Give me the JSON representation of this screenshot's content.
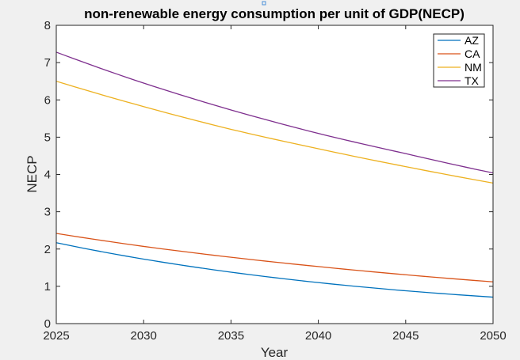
{
  "chart_data": {
    "type": "line",
    "title": "non-renewable energy consumption per unit of GDP(NECP)",
    "xlabel": "Year",
    "ylabel": "NECP",
    "xlim": [
      2025,
      2050
    ],
    "ylim": [
      0,
      8
    ],
    "x_ticks": [
      2025,
      2030,
      2035,
      2040,
      2045,
      2050
    ],
    "y_ticks": [
      0,
      1,
      2,
      3,
      4,
      5,
      6,
      7,
      8
    ],
    "grid": false,
    "legend_position": "top-right",
    "x": [
      2025,
      2030,
      2035,
      2040,
      2045,
      2050
    ],
    "series": [
      {
        "name": "AZ",
        "color": "#0072bd",
        "values": [
          2.17,
          1.73,
          1.38,
          1.1,
          0.88,
          0.71
        ]
      },
      {
        "name": "CA",
        "color": "#d95319",
        "values": [
          2.42,
          2.07,
          1.78,
          1.53,
          1.31,
          1.12
        ]
      },
      {
        "name": "NM",
        "color": "#edb120",
        "values": [
          6.5,
          5.82,
          5.21,
          4.69,
          4.21,
          3.77
        ]
      },
      {
        "name": "TX",
        "color": "#7e2f8e",
        "values": [
          7.28,
          6.45,
          5.73,
          5.1,
          4.56,
          4.04
        ]
      }
    ]
  }
}
